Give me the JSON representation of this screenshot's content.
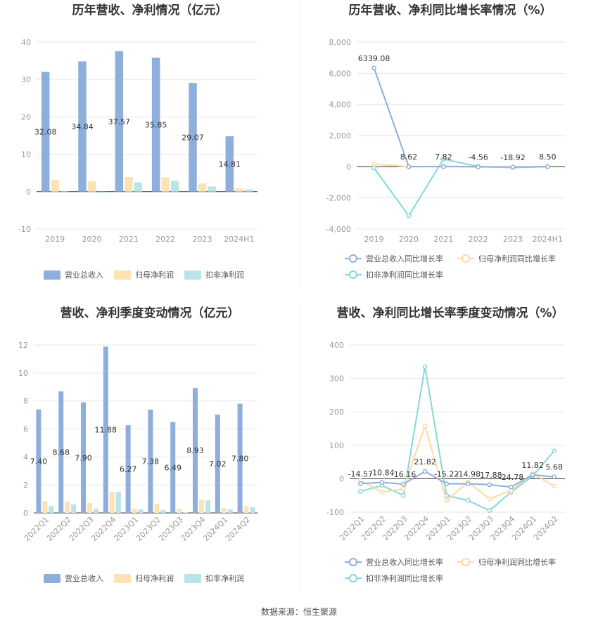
{
  "colors": {
    "revenue": "#8eaedc",
    "net_profit": "#fde3b3",
    "deducted": "#b9e5e8",
    "revenue_line": "#8eaedc",
    "net_line": "#fdd9a3",
    "deducted_line": "#86d7d9"
  },
  "source": "数据来源：恒生聚源",
  "chart_data": [
    {
      "type": "bar",
      "title": "历年营收、净利情况（亿元）",
      "categories": [
        "2019",
        "2020",
        "2021",
        "2022",
        "2023",
        "2024H1"
      ],
      "ylim": [
        -10,
        40
      ],
      "yticks": [
        -10,
        0,
        10,
        20,
        30,
        40
      ],
      "ytick_labels": [
        "-10",
        "0",
        "10",
        "20",
        "30",
        "40"
      ],
      "series": [
        {
          "name": "营业总收入",
          "values": [
            32.08,
            34.84,
            37.57,
            35.85,
            29.07,
            14.81
          ]
        },
        {
          "name": "归母净利润",
          "values": [
            3.1,
            2.8,
            3.9,
            3.8,
            2.2,
            0.9
          ]
        },
        {
          "name": "扣非净利润",
          "values": [
            0.1,
            -0.4,
            2.5,
            2.9,
            1.4,
            0.6
          ]
        }
      ],
      "data_labels": [
        "32.08",
        "34.84",
        "37.57",
        "35.85",
        "29.07",
        "14.81"
      ],
      "legend": "bottom",
      "grid": true
    },
    {
      "type": "line",
      "title": "历年营收、净利同比增长率情况（%）",
      "categories": [
        "2019",
        "2020",
        "2021",
        "2022",
        "2023",
        "2024H1"
      ],
      "ylim": [
        -4000,
        8000
      ],
      "yticks": [
        -4000,
        -2000,
        0,
        2000,
        4000,
        6000,
        8000
      ],
      "ytick_labels": [
        "-4,000",
        "-2,000",
        "0",
        "2,000",
        "4,000",
        "6,000",
        "8,000"
      ],
      "series": [
        {
          "name": "营业总收入同比增长率",
          "values": [
            6339.08,
            8.62,
            7.82,
            -4.56,
            -18.92,
            8.5
          ]
        },
        {
          "name": "归母净利润同比增长率",
          "values": [
            180,
            -10,
            30,
            -5,
            -40,
            20
          ]
        },
        {
          "name": "扣非净利润同比增长率",
          "values": [
            -80,
            -3150,
            490,
            15,
            -60,
            10
          ]
        }
      ],
      "data_labels": [
        "6339.08",
        "8.62",
        "7.82",
        "-4.56",
        "-18.92",
        "8.50"
      ],
      "legend": "bottom",
      "grid": true
    },
    {
      "type": "bar",
      "title": "营收、净利季度变动情况（亿元）",
      "categories": [
        "2022Q1",
        "2022Q2",
        "2022Q3",
        "2022Q4",
        "2023Q1",
        "2023Q2",
        "2023Q3",
        "2023Q4",
        "2024Q1",
        "2024Q2"
      ],
      "ylim": [
        0,
        12
      ],
      "yticks": [
        0,
        2,
        4,
        6,
        8,
        10,
        12
      ],
      "ytick_labels": [
        "0",
        "2",
        "4",
        "6",
        "8",
        "10",
        "12"
      ],
      "series": [
        {
          "name": "营业总收入",
          "values": [
            7.4,
            8.68,
            7.9,
            11.88,
            6.27,
            7.38,
            6.49,
            8.93,
            7.02,
            7.8
          ]
        },
        {
          "name": "归母净利润",
          "values": [
            0.85,
            0.8,
            0.7,
            1.5,
            0.3,
            0.65,
            0.3,
            0.95,
            0.35,
            0.5
          ]
        },
        {
          "name": "扣非净利润",
          "values": [
            0.5,
            0.6,
            0.3,
            1.5,
            0.25,
            0.2,
            0.05,
            0.9,
            0.25,
            0.4
          ]
        }
      ],
      "data_labels": [
        "7.40",
        "8.68",
        "7.90",
        "11.88",
        "6.27",
        "7.38",
        "6.49",
        "8.93",
        "7.02",
        "7.80"
      ],
      "legend": "bottom",
      "grid": true
    },
    {
      "type": "line",
      "title": "营收、净利同比增长率季度变动情况（%）",
      "categories": [
        "2022Q1",
        "2022Q2",
        "2022Q3",
        "2022Q4",
        "2023Q1",
        "2023Q2",
        "2023Q3",
        "2023Q4",
        "2024Q1",
        "2024Q2"
      ],
      "ylim": [
        -100,
        400
      ],
      "yticks": [
        -100,
        0,
        100,
        200,
        300,
        400
      ],
      "ytick_labels": [
        "-100",
        "0",
        "100",
        "200",
        "300",
        "400"
      ],
      "series": [
        {
          "name": "营业总收入同比增长率",
          "values": [
            -14.57,
            -10.84,
            -16.16,
            21.82,
            -15.22,
            -14.98,
            -17.88,
            -24.78,
            11.82,
            5.68
          ]
        },
        {
          "name": "归母净利润同比增长率",
          "values": [
            -5,
            -40,
            -30,
            158,
            -65,
            -10,
            -60,
            -35,
            15,
            -22
          ]
        },
        {
          "name": "扣非净利润同比增长率",
          "values": [
            -38,
            -20,
            -50,
            335,
            -50,
            -65,
            -95,
            -40,
            8,
            83
          ]
        }
      ],
      "data_labels": [
        "-14.57",
        "-10.84",
        "-16.16",
        "21.82",
        "-15.22",
        "-14.98",
        "-17.88",
        "-24.78",
        "11.82",
        "5.68"
      ],
      "legend": "bottom",
      "grid": true
    }
  ]
}
